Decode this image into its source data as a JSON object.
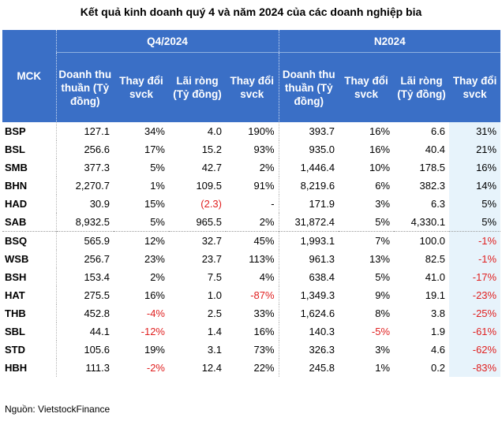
{
  "title": "Kết quả kinh doanh quý 4 và năm 2024 của các doanh nghiệp bia",
  "headers": {
    "mck": "MCK",
    "group_q4": "Q4/2024",
    "group_year": "N2024",
    "revenue": "Doanh thu thuần (Tỷ đồng)",
    "change": "Thay đổi svck",
    "profit": "Lãi ròng (Tỷ đồng)"
  },
  "rows": [
    {
      "mck": "BSP",
      "q4_rev": "127.1",
      "q4_rev_chg": "34%",
      "q4_profit": "4.0",
      "q4_profit_chg": "190%",
      "y_rev": "393.7",
      "y_rev_chg": "16%",
      "y_profit": "6.6",
      "y_profit_chg": "31%"
    },
    {
      "mck": "BSL",
      "q4_rev": "256.6",
      "q4_rev_chg": "17%",
      "q4_profit": "15.2",
      "q4_profit_chg": "93%",
      "y_rev": "935.0",
      "y_rev_chg": "16%",
      "y_profit": "40.4",
      "y_profit_chg": "21%"
    },
    {
      "mck": "SMB",
      "q4_rev": "377.3",
      "q4_rev_chg": "5%",
      "q4_profit": "42.7",
      "q4_profit_chg": "2%",
      "y_rev": "1,446.4",
      "y_rev_chg": "10%",
      "y_profit": "178.5",
      "y_profit_chg": "16%"
    },
    {
      "mck": "BHN",
      "q4_rev": "2,270.7",
      "q4_rev_chg": "1%",
      "q4_profit": "109.5",
      "q4_profit_chg": "91%",
      "y_rev": "8,219.6",
      "y_rev_chg": "6%",
      "y_profit": "382.3",
      "y_profit_chg": "14%"
    },
    {
      "mck": "HAD",
      "q4_rev": "30.9",
      "q4_rev_chg": "15%",
      "q4_profit": "(2.3)",
      "q4_profit_chg": "-",
      "y_rev": "171.9",
      "y_rev_chg": "3%",
      "y_profit": "6.3",
      "y_profit_chg": "5%"
    },
    {
      "mck": "SAB",
      "q4_rev": "8,932.5",
      "q4_rev_chg": "5%",
      "q4_profit": "965.5",
      "q4_profit_chg": "2%",
      "y_rev": "31,872.4",
      "y_rev_chg": "5%",
      "y_profit": "4,330.1",
      "y_profit_chg": "5%"
    },
    {
      "mck": "BSQ",
      "q4_rev": "565.9",
      "q4_rev_chg": "12%",
      "q4_profit": "32.7",
      "q4_profit_chg": "45%",
      "y_rev": "1,993.1",
      "y_rev_chg": "7%",
      "y_profit": "100.0",
      "y_profit_chg": "-1%"
    },
    {
      "mck": "WSB",
      "q4_rev": "256.7",
      "q4_rev_chg": "23%",
      "q4_profit": "23.7",
      "q4_profit_chg": "113%",
      "y_rev": "961.3",
      "y_rev_chg": "13%",
      "y_profit": "82.5",
      "y_profit_chg": "-1%"
    },
    {
      "mck": "BSH",
      "q4_rev": "153.4",
      "q4_rev_chg": "2%",
      "q4_profit": "7.5",
      "q4_profit_chg": "4%",
      "y_rev": "638.4",
      "y_rev_chg": "5%",
      "y_profit": "41.0",
      "y_profit_chg": "-17%"
    },
    {
      "mck": "HAT",
      "q4_rev": "275.5",
      "q4_rev_chg": "16%",
      "q4_profit": "1.0",
      "q4_profit_chg": "-87%",
      "y_rev": "1,349.3",
      "y_rev_chg": "9%",
      "y_profit": "19.1",
      "y_profit_chg": "-23%"
    },
    {
      "mck": "THB",
      "q4_rev": "452.8",
      "q4_rev_chg": "-4%",
      "q4_profit": "2.5",
      "q4_profit_chg": "33%",
      "y_rev": "1,624.6",
      "y_rev_chg": "8%",
      "y_profit": "3.8",
      "y_profit_chg": "-25%"
    },
    {
      "mck": "SBL",
      "q4_rev": "44.1",
      "q4_rev_chg": "-12%",
      "q4_profit": "1.4",
      "q4_profit_chg": "16%",
      "y_rev": "140.3",
      "y_rev_chg": "-5%",
      "y_profit": "1.9",
      "y_profit_chg": "-61%"
    },
    {
      "mck": "STD",
      "q4_rev": "105.6",
      "q4_rev_chg": "19%",
      "q4_profit": "3.1",
      "q4_profit_chg": "73%",
      "y_rev": "326.3",
      "y_rev_chg": "3%",
      "y_profit": "4.6",
      "y_profit_chg": "-62%"
    },
    {
      "mck": "HBH",
      "q4_rev": "111.3",
      "q4_rev_chg": "-2%",
      "q4_profit": "12.4",
      "q4_profit_chg": "22%",
      "y_rev": "245.8",
      "y_rev_chg": "1%",
      "y_profit": "0.2",
      "y_profit_chg": "-83%"
    }
  ],
  "source": "Nguồn: VietstockFinance",
  "colors": {
    "header_bg": "#3a6fc6",
    "negative": "#e02020",
    "highlight_col": "#e7f3fb"
  }
}
